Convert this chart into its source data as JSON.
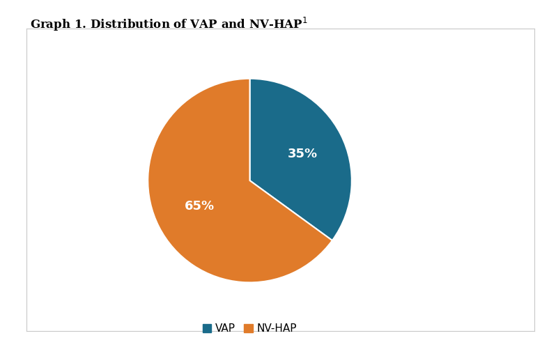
{
  "title": "Graph 1. Distribution of VAP and NV-HAP",
  "title_superscript": "1",
  "slices": [
    35,
    65
  ],
  "labels": [
    "VAP",
    "NV-HAP"
  ],
  "colors": [
    "#1a6b8a",
    "#e07b2a"
  ],
  "legend_labels": [
    "VAP",
    "NV-HAP"
  ],
  "startangle": 90,
  "background_color": "#ffffff",
  "box_edge_color": "#c8c8c8",
  "label_fontsize": 13,
  "label_color": "#ffffff",
  "title_fontsize": 12,
  "legend_fontsize": 11
}
